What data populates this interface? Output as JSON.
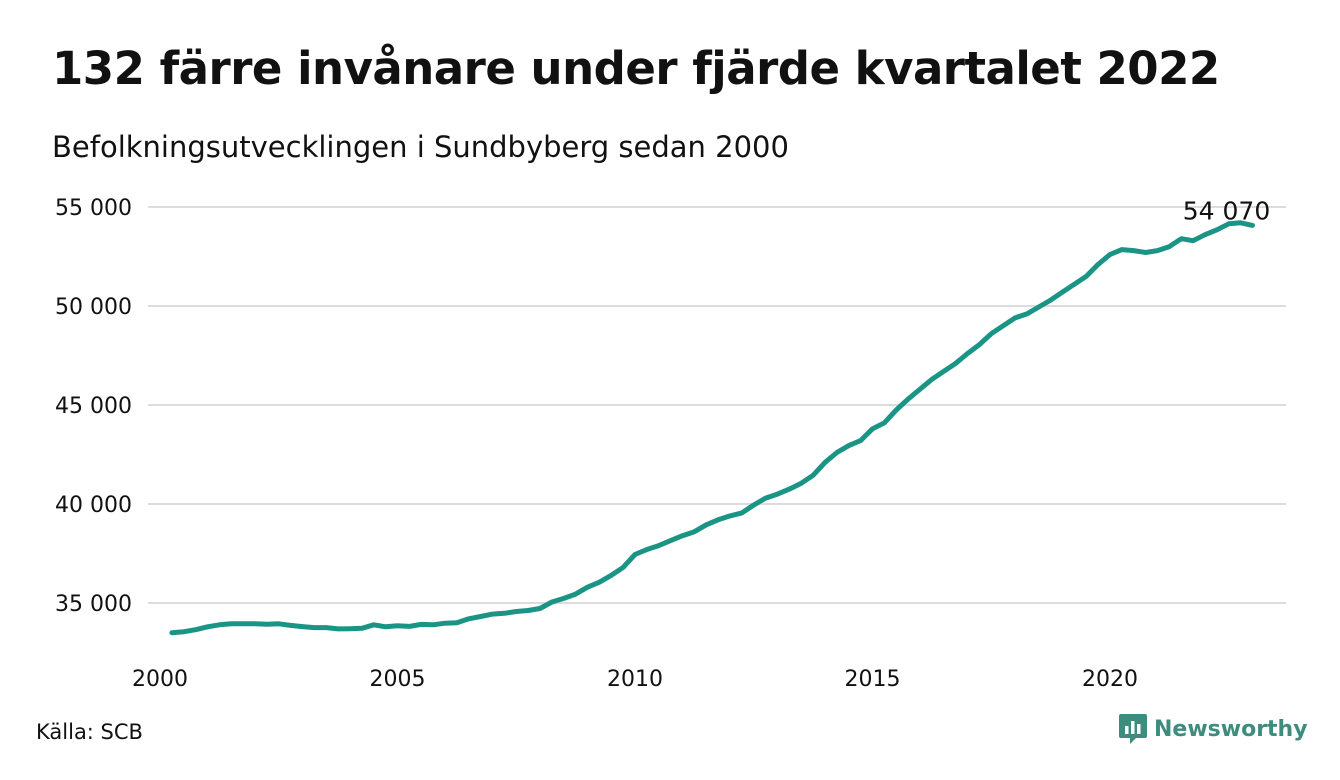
{
  "header": {
    "title": "132 färre invånare under fjärde kvartalet 2022",
    "subtitle": "Befolkningsutvecklingen i Sundbyberg sedan 2000"
  },
  "footer": {
    "source": "Källa: SCB",
    "brand": "Newsworthy",
    "brand_icon": "newsworthy-logo-icon",
    "brand_color": "#3e8c7e"
  },
  "chart_data": {
    "type": "line",
    "xlabel": "",
    "ylabel": "",
    "ylim": [
      33000,
      55500
    ],
    "xlim": [
      2000,
      2023
    ],
    "grid": true,
    "line_color": "#1a9585",
    "yticks": [
      {
        "value": 35000,
        "label": "35 000"
      },
      {
        "value": 40000,
        "label": "40 000"
      },
      {
        "value": 45000,
        "label": "45 000"
      },
      {
        "value": 50000,
        "label": "50 000"
      },
      {
        "value": 55000,
        "label": "55 000"
      }
    ],
    "xticks": [
      {
        "value": 2000,
        "label": "2000"
      },
      {
        "value": 2005,
        "label": "2005"
      },
      {
        "value": 2010,
        "label": "2010"
      },
      {
        "value": 2015,
        "label": "2015"
      },
      {
        "value": 2020,
        "label": "2020"
      }
    ],
    "end_label": "54 070",
    "series": [
      {
        "x": [
          2000.25,
          2000.5,
          2000.75,
          2001,
          2001.25,
          2001.5,
          2001.75,
          2002,
          2002.25,
          2002.5,
          2002.75,
          2003,
          2003.25,
          2003.5,
          2003.75,
          2004,
          2004.25,
          2004.5,
          2004.75,
          2005,
          2005.25,
          2005.5,
          2005.75,
          2006,
          2006.25,
          2006.5,
          2006.75,
          2007,
          2007.25,
          2007.5,
          2007.75,
          2008,
          2008.25,
          2008.5,
          2008.75,
          2009,
          2009.25,
          2009.5,
          2009.75,
          2010,
          2010.25,
          2010.5,
          2010.75,
          2011,
          2011.25,
          2011.5,
          2011.75,
          2012,
          2012.25,
          2012.5,
          2012.75,
          2013,
          2013.25,
          2013.5,
          2013.75,
          2014,
          2014.25,
          2014.5,
          2014.75,
          2015,
          2015.25,
          2015.5,
          2015.75,
          2016,
          2016.25,
          2016.5,
          2016.75,
          2017,
          2017.25,
          2017.5,
          2017.75,
          2018,
          2018.25,
          2018.5,
          2018.75,
          2019,
          2019.25,
          2019.5,
          2019.75,
          2020,
          2020.25,
          2020.5,
          2020.75,
          2021,
          2021.25,
          2021.5,
          2021.75,
          2022,
          2022.25,
          2022.5,
          2022.75,
          2023
        ],
        "values": [
          33500,
          33550,
          33650,
          33800,
          33900,
          33950,
          33950,
          33950,
          33930,
          33950,
          33870,
          33810,
          33760,
          33760,
          33690,
          33700,
          33720,
          33900,
          33800,
          33850,
          33820,
          33920,
          33900,
          33980,
          34000,
          34200,
          34320,
          34440,
          34480,
          34570,
          34620,
          34720,
          35050,
          35230,
          35450,
          35800,
          36050,
          36400,
          36800,
          37450,
          37700,
          37900,
          38150,
          38400,
          38600,
          38950,
          39200,
          39400,
          39550,
          39950,
          40300,
          40500,
          40750,
          41050,
          41450,
          42100,
          42600,
          42950,
          43200,
          43800,
          44100,
          44750,
          45300,
          45800,
          46300,
          46700,
          47100,
          47600,
          48050,
          48600,
          49000,
          49400,
          49600,
          49950,
          50300,
          50700,
          51100,
          51500,
          52100,
          52600,
          52850,
          52800,
          52700,
          52800,
          53000,
          53400,
          53300,
          53600,
          53850,
          54150,
          54200,
          54070
        ]
      }
    ]
  }
}
